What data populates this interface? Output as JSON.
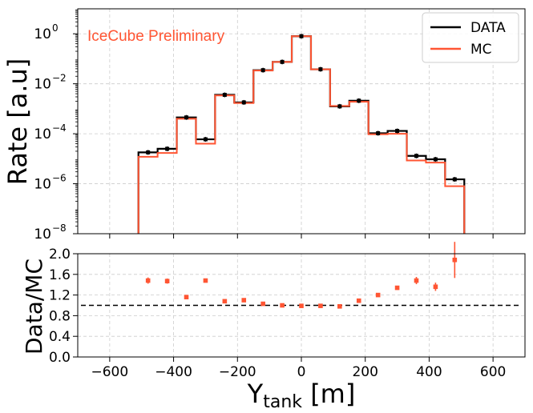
{
  "chart_data": [
    {
      "type": "line",
      "subtype": "step-histogram",
      "title": "",
      "annotation": "IceCube Preliminary",
      "ylabel": "Rate [a.u]",
      "xlabel": "",
      "yscale": "log",
      "xlim": [
        -700,
        700
      ],
      "ylim_exp": [
        -8,
        1
      ],
      "x_ticks": [
        -600,
        -400,
        -200,
        0,
        200,
        400,
        600
      ],
      "y_tick_exponents": [
        -8,
        -6,
        -4,
        -2,
        0
      ],
      "y_tick_base": "10",
      "bin_edges": [
        -510,
        -450,
        -390,
        -330,
        -270,
        -210,
        -150,
        -90,
        -30,
        30,
        90,
        150,
        210,
        270,
        330,
        390,
        450,
        510
      ],
      "grid": true,
      "legend_position": "top-right",
      "series": [
        {
          "name": "DATA",
          "color": "#000000",
          "values": [
            1.8e-05,
            2.5e-05,
            0.00045,
            6e-05,
            0.0036,
            0.0018,
            0.035,
            0.075,
            0.8,
            0.038,
            0.00125,
            0.0021,
            0.000105,
            0.00013,
            1.3e-05,
            9.5e-06,
            1.5e-06
          ]
        },
        {
          "name": "MC",
          "color": "#ff5533",
          "values": [
            1.2e-05,
            1.7e-05,
            0.0004,
            4e-05,
            0.0034,
            0.0017,
            0.034,
            0.075,
            0.8,
            0.038,
            0.0013,
            0.0019,
            9.5e-05,
            0.0001,
            8.5e-06,
            7e-06,
            8e-07
          ]
        }
      ]
    },
    {
      "type": "scatter",
      "ylabel": "Data/MC",
      "xlabel": "Y",
      "xlabel_subscript": "tank",
      "xlabel_unit": " [m]",
      "xlim": [
        -700,
        700
      ],
      "ylim": [
        0.0,
        2.0
      ],
      "x_ticks": [
        -600,
        -400,
        -200,
        0,
        200,
        400,
        600
      ],
      "x_tick_labels": [
        "−600",
        "−400",
        "−200",
        "0",
        "200",
        "400",
        "600"
      ],
      "y_ticks": [
        0.0,
        0.4,
        0.8,
        1.2,
        1.6,
        2.0
      ],
      "y_tick_labels": [
        "0.0",
        "0.4",
        "0.8",
        "1.2",
        "1.6",
        "2.0"
      ],
      "reference_line": 1.0,
      "grid": true,
      "color": "#ff5533",
      "x": [
        -480,
        -420,
        -360,
        -300,
        -240,
        -180,
        -120,
        -60,
        0,
        60,
        120,
        180,
        240,
        300,
        360,
        420,
        480
      ],
      "values": [
        1.48,
        1.47,
        1.16,
        1.48,
        1.08,
        1.1,
        1.03,
        1.0,
        0.99,
        0.99,
        0.98,
        1.09,
        1.2,
        1.34,
        1.48,
        1.36,
        1.88
      ],
      "errors": [
        0.06,
        0.05,
        0.03,
        0.03,
        0.02,
        0.02,
        0.01,
        0.01,
        0.005,
        0.01,
        0.02,
        0.02,
        0.03,
        0.04,
        0.07,
        0.08,
        0.35
      ]
    }
  ]
}
